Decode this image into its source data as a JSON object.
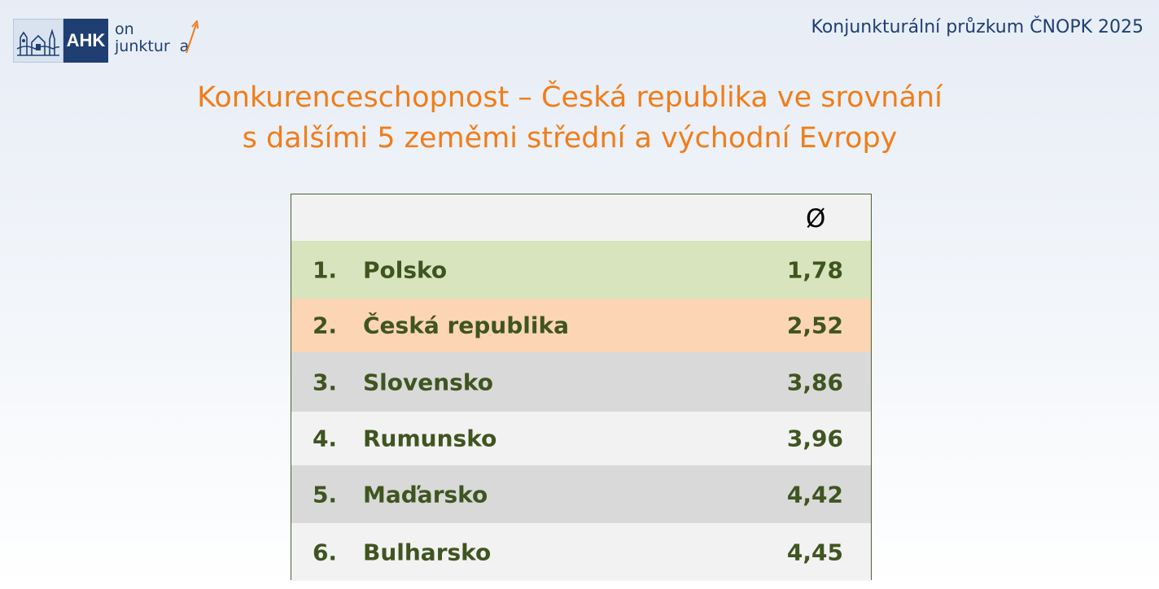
{
  "header": {
    "logo_brand": "AHK",
    "logo_line1": "on",
    "logo_line2": "junktur",
    "logo_line2_end": "a",
    "survey_title": "Konjunkturální průzkum ČNOPK 2025"
  },
  "title": {
    "line1": "Konkurenceschopnost – Česká republika ve srovnání",
    "line2": "s dalšími 5 zeměmi střední a východní Evropy"
  },
  "table": {
    "header_symbol": "Ø",
    "rows": [
      {
        "rank": "1.",
        "country": "Polsko",
        "value": "1,78",
        "color": "#d7e4bd"
      },
      {
        "rank": "2.",
        "country": "Česká republika",
        "value": "2,52",
        "color": "#fcd5b5"
      },
      {
        "rank": "3.",
        "country": "Slovensko",
        "value": "3,86",
        "color": "#d9d9d9"
      },
      {
        "rank": "4.",
        "country": "Rumunsko",
        "value": "3,96",
        "color": "#f2f2f2"
      },
      {
        "rank": "5.",
        "country": "Maďarsko",
        "value": "4,42",
        "color": "#d9d9d9"
      },
      {
        "rank": "6.",
        "country": "Bulharsko",
        "value": "4,45",
        "color": "#f2f2f2"
      }
    ]
  },
  "colors": {
    "title": "#f07d19",
    "navy": "#1f3f73",
    "row_text": "#3f5520"
  }
}
